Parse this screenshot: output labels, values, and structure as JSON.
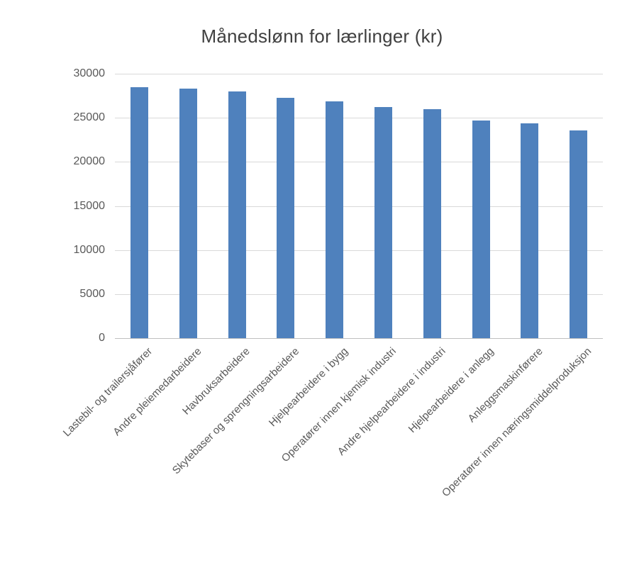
{
  "title": "Månedslønn for lærlinger (kr)",
  "colors": {
    "bar": "#4f81bd",
    "gridline": "#d9d9d9",
    "axis_line": "#bfbfbf",
    "title_text": "#404040",
    "tick_text": "#595959"
  },
  "chart_data": {
    "type": "bar",
    "title": "Månedslønn for lærlinger (kr)",
    "categories": [
      "Lastebil- og trailersjåfører",
      "Andre pleiemedarbeidere",
      "Havbruksarbeidere",
      "Skytebaser og sprengningsarbeidere",
      "Hjelpearbeidere i bygg",
      "Operatører innen kjemisk industri",
      "Andre hjelpearbeidere i industri",
      "Hjelpearbeidere i anlegg",
      "Anleggsmaskinførere",
      "Operatører innen næringsmiddelproduksjon"
    ],
    "values": [
      28500,
      28300,
      28000,
      27300,
      26900,
      26200,
      26000,
      24700,
      24400,
      23600
    ],
    "xlabel": "",
    "ylabel": "",
    "ylim": [
      0,
      30000
    ],
    "yticks": [
      0,
      5000,
      10000,
      15000,
      20000,
      25000,
      30000
    ],
    "grid": true,
    "legend_position": "none",
    "bar_color": "#4f81bd",
    "x_tick_rotation_deg": 45
  }
}
